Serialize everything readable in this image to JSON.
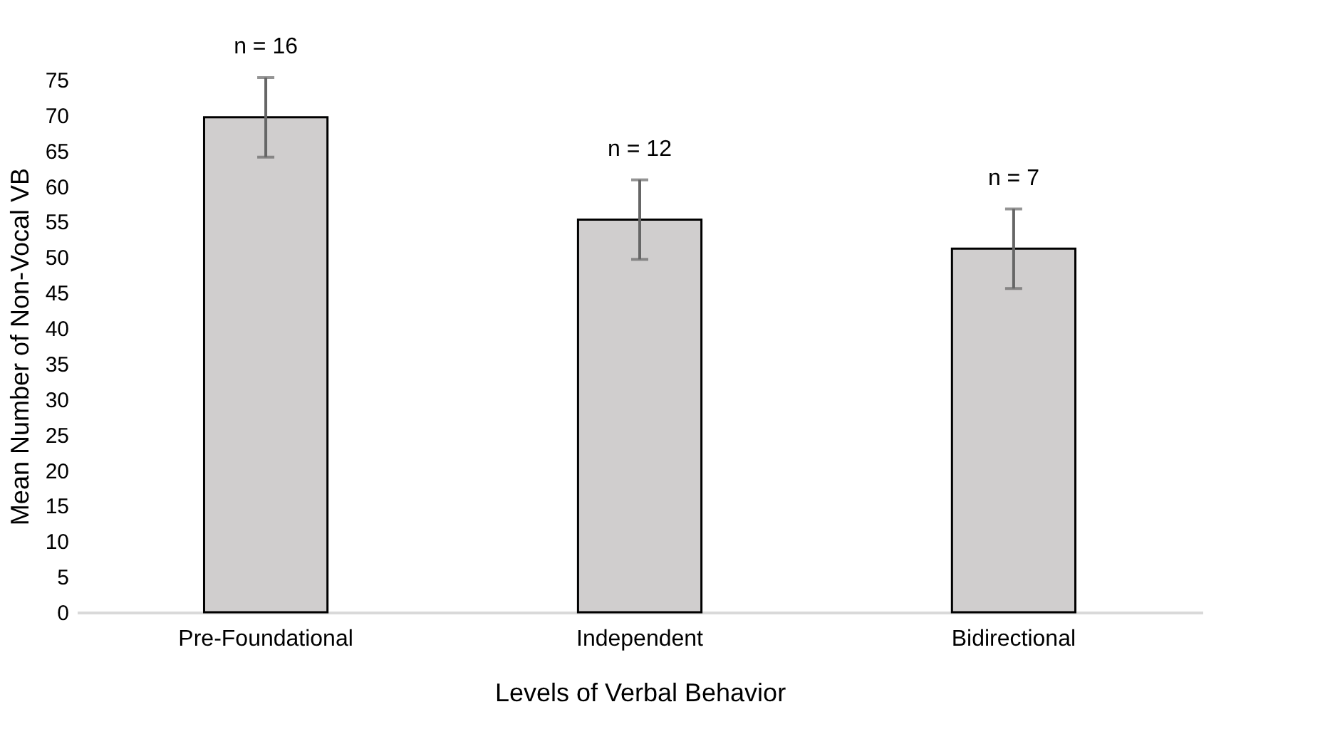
{
  "chart_data": {
    "type": "bar",
    "xlabel": "Levels of Verbal Behavior",
    "ylabel": "Mean Number of Non-Vocal VB",
    "categories": [
      "Pre-Foundational",
      "Independent",
      "Bidirectional"
    ],
    "values": [
      69.7,
      55.3,
      51.2
    ],
    "errors": [
      5.6,
      5.6,
      5.6
    ],
    "color": "#d0cece",
    "ylim": [
      0,
      75
    ],
    "yticks": [
      0,
      5,
      10,
      15,
      20,
      25,
      30,
      35,
      40,
      45,
      50,
      55,
      60,
      65,
      70,
      75
    ],
    "grid": false,
    "annotations": [
      "n = 16",
      "n = 12",
      "n = 7"
    ]
  }
}
